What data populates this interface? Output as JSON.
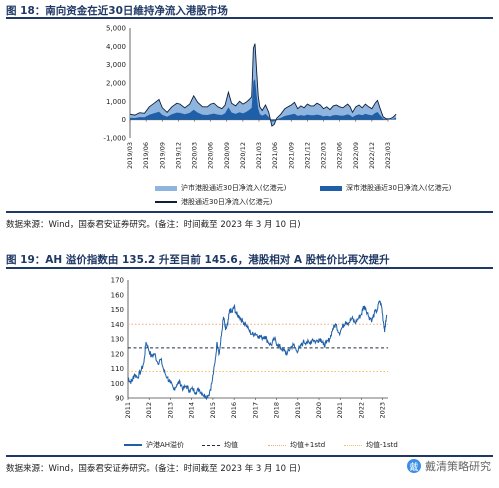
{
  "figure1": {
    "title": "图 18：南向资金在近30日維持净流入港股市场",
    "source": "数据来源：Wind，国泰君安证券研究。(备注：时间截至 2023 年 3 月 10 日)"
  },
  "figure2": {
    "title": "图 19：AH 溢价指数由 135.2 升至目前 145.6，港股相对 A 股性价比再次提升",
    "source": "数据来源：Wind，国泰君安证券研究。(备注：时间截至 2023 年 3 月 10 日)"
  },
  "watermark": {
    "text": "戴清策略研究",
    "logo": "戴"
  },
  "chart_data": [
    {
      "type": "area",
      "x_ticks": [
        "2019/03",
        "2019/06",
        "2019/09",
        "2019/12",
        "2020/03",
        "2020/06",
        "2020/09",
        "2020/12",
        "2021/03",
        "2021/06",
        "2021/09",
        "2021/12",
        "2022/03",
        "2022/06",
        "2022/09",
        "2022/12",
        "2023/03"
      ],
      "ylim": [
        -1000,
        5000
      ],
      "y_ticks": [
        "-1,000",
        "0",
        "1,000",
        "2,000",
        "3,000",
        "4,000",
        "5,000"
      ],
      "colors": {
        "sh": "#8fb4de",
        "sz": "#1e5fa8",
        "total": "#0d1f3c"
      },
      "series": [
        {
          "name": "沪市港股通近30日净流入(亿港元)"
        },
        {
          "name": "深市港股通近30日净流入(亿港元)"
        },
        {
          "name": "港股通近30日净流入(亿港元)"
        }
      ],
      "total_points": [
        [
          0,
          300
        ],
        [
          0.3,
          250
        ],
        [
          0.6,
          380
        ],
        [
          0.9,
          350
        ],
        [
          1.2,
          700
        ],
        [
          1.5,
          900
        ],
        [
          1.8,
          1100
        ],
        [
          2.0,
          650
        ],
        [
          2.3,
          400
        ],
        [
          2.6,
          700
        ],
        [
          2.9,
          900
        ],
        [
          3.1,
          850
        ],
        [
          3.4,
          650
        ],
        [
          3.7,
          850
        ],
        [
          3.95,
          1300
        ],
        [
          4.2,
          950
        ],
        [
          4.5,
          700
        ],
        [
          4.8,
          700
        ],
        [
          5.0,
          850
        ],
        [
          5.2,
          900
        ],
        [
          5.45,
          700
        ],
        [
          5.7,
          600
        ],
        [
          5.9,
          800
        ],
        [
          6.1,
          1500
        ],
        [
          6.3,
          900
        ],
        [
          6.55,
          750
        ],
        [
          6.8,
          1000
        ],
        [
          7.0,
          850
        ],
        [
          7.2,
          950
        ],
        [
          7.4,
          1100
        ],
        [
          7.55,
          1250
        ],
        [
          7.65,
          3900
        ],
        [
          7.75,
          4150
        ],
        [
          7.85,
          2700
        ],
        [
          7.95,
          1300
        ],
        [
          8.05,
          700
        ],
        [
          8.2,
          500
        ],
        [
          8.4,
          800
        ],
        [
          8.6,
          400
        ],
        [
          8.8,
          -350
        ],
        [
          8.95,
          -250
        ],
        [
          9.1,
          80
        ],
        [
          9.35,
          300
        ],
        [
          9.6,
          600
        ],
        [
          9.8,
          700
        ],
        [
          10.0,
          800
        ],
        [
          10.2,
          950
        ],
        [
          10.4,
          600
        ],
        [
          10.6,
          750
        ],
        [
          10.8,
          650
        ],
        [
          11.0,
          850
        ],
        [
          11.2,
          750
        ],
        [
          11.4,
          750
        ],
        [
          11.6,
          900
        ],
        [
          11.8,
          800
        ],
        [
          12.0,
          600
        ],
        [
          12.2,
          700
        ],
        [
          12.4,
          550
        ],
        [
          12.6,
          750
        ],
        [
          12.8,
          800
        ],
        [
          13.0,
          700
        ],
        [
          13.2,
          650
        ],
        [
          13.35,
          750
        ],
        [
          13.5,
          850
        ],
        [
          13.65,
          700
        ],
        [
          13.8,
          400
        ],
        [
          14.0,
          700
        ],
        [
          14.2,
          800
        ],
        [
          14.4,
          650
        ],
        [
          14.6,
          850
        ],
        [
          14.8,
          700
        ],
        [
          15.0,
          600
        ],
        [
          15.2,
          900
        ],
        [
          15.35,
          1050
        ],
        [
          15.5,
          650
        ],
        [
          15.7,
          150
        ],
        [
          15.9,
          50
        ],
        [
          16.1,
          50
        ],
        [
          16.3,
          120
        ],
        [
          16.5,
          300
        ]
      ],
      "sz_share": [
        [
          0,
          0.35
        ],
        [
          2,
          0.4
        ],
        [
          3.5,
          0.45
        ],
        [
          5,
          0.35
        ],
        [
          6,
          0.45
        ],
        [
          7,
          0.4
        ],
        [
          7.7,
          0.55
        ],
        [
          8,
          0.45
        ],
        [
          9,
          0.3
        ],
        [
          10,
          0.35
        ],
        [
          12,
          0.3
        ],
        [
          14,
          0.35
        ],
        [
          15.3,
          0.4
        ],
        [
          16.5,
          0.35
        ]
      ]
    },
    {
      "type": "line",
      "x_ticks": [
        "2011",
        "2012",
        "2013",
        "2014",
        "2015",
        "2016",
        "2017",
        "2018",
        "2019",
        "2020",
        "2021",
        "2022",
        "2023"
      ],
      "ylim": [
        90,
        170
      ],
      "y_ticks": [
        "90",
        "100",
        "110",
        "120",
        "130",
        "140",
        "150",
        "160",
        "170"
      ],
      "colors": {
        "line": "#1e5fa8",
        "mean": "#1f2d3d",
        "plus1": "#f0a97a",
        "minus1": "#f2c25c"
      },
      "series": [
        {
          "name": "沪港AH溢价"
        },
        {
          "name": "均值"
        },
        {
          "name": "均值+1std"
        },
        {
          "name": "均值-1std"
        }
      ],
      "mean": 124,
      "plus1std": 140,
      "minus1std": 108,
      "points": [
        [
          2011.0,
          104
        ],
        [
          2011.1,
          101
        ],
        [
          2011.2,
          102
        ],
        [
          2011.3,
          106
        ],
        [
          2011.45,
          104
        ],
        [
          2011.6,
          108
        ],
        [
          2011.75,
          114
        ],
        [
          2011.85,
          128
        ],
        [
          2011.95,
          124
        ],
        [
          2012.1,
          118
        ],
        [
          2012.25,
          120
        ],
        [
          2012.4,
          114
        ],
        [
          2012.55,
          116
        ],
        [
          2012.7,
          108
        ],
        [
          2012.85,
          104
        ],
        [
          2013.0,
          100
        ],
        [
          2013.15,
          96
        ],
        [
          2013.3,
          99
        ],
        [
          2013.45,
          101
        ],
        [
          2013.6,
          96
        ],
        [
          2013.75,
          98
        ],
        [
          2013.9,
          95
        ],
        [
          2014.05,
          96
        ],
        [
          2014.2,
          94
        ],
        [
          2014.35,
          96
        ],
        [
          2014.5,
          93
        ],
        [
          2014.65,
          91
        ],
        [
          2014.8,
          92
        ],
        [
          2014.95,
          100
        ],
        [
          2015.1,
          114
        ],
        [
          2015.2,
          128
        ],
        [
          2015.3,
          120
        ],
        [
          2015.4,
          132
        ],
        [
          2015.5,
          145
        ],
        [
          2015.6,
          136
        ],
        [
          2015.7,
          140
        ],
        [
          2015.8,
          150
        ],
        [
          2015.9,
          148
        ],
        [
          2016.0,
          152
        ],
        [
          2016.1,
          147
        ],
        [
          2016.25,
          145
        ],
        [
          2016.4,
          142
        ],
        [
          2016.55,
          140
        ],
        [
          2016.7,
          136
        ],
        [
          2016.85,
          133
        ],
        [
          2017.0,
          134
        ],
        [
          2017.15,
          132
        ],
        [
          2017.3,
          131
        ],
        [
          2017.45,
          132
        ],
        [
          2017.6,
          128
        ],
        [
          2017.75,
          126
        ],
        [
          2017.9,
          130
        ],
        [
          2018.05,
          126
        ],
        [
          2018.2,
          124
        ],
        [
          2018.35,
          122
        ],
        [
          2018.5,
          120
        ],
        [
          2018.65,
          124
        ],
        [
          2018.8,
          126
        ],
        [
          2018.95,
          122
        ],
        [
          2019.1,
          124
        ],
        [
          2019.25,
          128
        ],
        [
          2019.4,
          128
        ],
        [
          2019.55,
          127
        ],
        [
          2019.7,
          130
        ],
        [
          2019.85,
          128
        ],
        [
          2020.0,
          130
        ],
        [
          2020.1,
          130
        ],
        [
          2020.2,
          126
        ],
        [
          2020.35,
          127
        ],
        [
          2020.5,
          130
        ],
        [
          2020.65,
          137
        ],
        [
          2020.8,
          140
        ],
        [
          2020.95,
          134
        ],
        [
          2021.1,
          138
        ],
        [
          2021.25,
          142
        ],
        [
          2021.4,
          141
        ],
        [
          2021.55,
          144
        ],
        [
          2021.7,
          141
        ],
        [
          2021.85,
          144
        ],
        [
          2022.0,
          147
        ],
        [
          2022.1,
          152
        ],
        [
          2022.2,
          151
        ],
        [
          2022.35,
          145
        ],
        [
          2022.5,
          143
        ],
        [
          2022.6,
          147
        ],
        [
          2022.75,
          150
        ],
        [
          2022.85,
          156
        ],
        [
          2022.95,
          152
        ],
        [
          2023.05,
          140
        ],
        [
          2023.1,
          136
        ],
        [
          2023.15,
          142
        ],
        [
          2023.19,
          145.6
        ]
      ]
    }
  ]
}
